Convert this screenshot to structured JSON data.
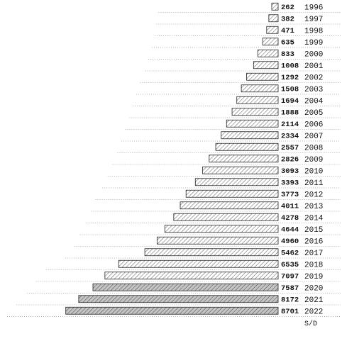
{
  "chart_data": {
    "type": "bar",
    "orientation": "horizontal",
    "categories": [
      "1996",
      "1997",
      "1998",
      "1999",
      "2000",
      "2001",
      "2002",
      "2003",
      "2004",
      "2005",
      "2006",
      "2007",
      "2008",
      "2009",
      "2010",
      "2011",
      "2012",
      "2013",
      "2014",
      "2015",
      "2016",
      "2017",
      "2018",
      "2019",
      "2020",
      "2021",
      "2022"
    ],
    "values": [
      262,
      382,
      471,
      635,
      833,
      1008,
      1292,
      1508,
      1694,
      1888,
      2114,
      2334,
      2557,
      2826,
      3093,
      3393,
      3773,
      4011,
      4278,
      4644,
      4960,
      5462,
      6535,
      7097,
      7587,
      8172,
      8701
    ],
    "trailing_label": "S/D",
    "highlighted_categories": [
      "2020",
      "2021",
      "2022"
    ],
    "grid": "dotted-row-lines",
    "legend": "none",
    "colors": {
      "bar_fill": "#ffffff",
      "hatch": "#555555",
      "highlight_fill": "#bfbfbf",
      "border": "#222222"
    }
  }
}
